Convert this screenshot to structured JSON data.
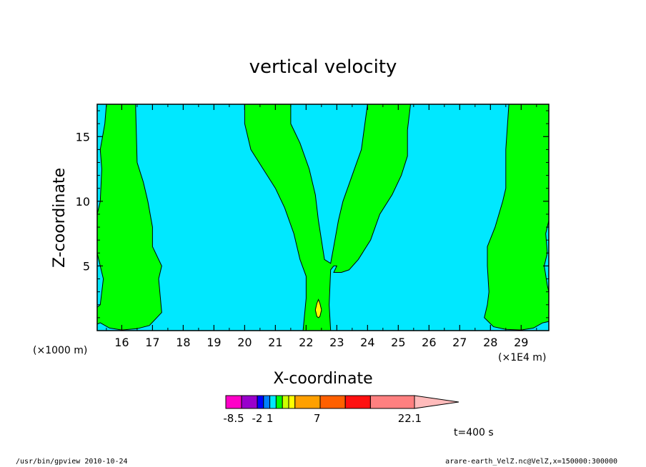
{
  "colors": {
    "background": "#00e8ff",
    "positive": "#00ff00",
    "yellow": "#ffff00",
    "outline": "#000000"
  },
  "chart_data": {
    "type": "contour",
    "title": "vertical velocity",
    "xlabel": "X-coordinate",
    "ylabel": "Z-coordinate",
    "x_unit_left": "(×1000 m)",
    "x_unit_right": "(×1E4 m)",
    "xlim": [
      15.2,
      29.9
    ],
    "ylim": [
      0,
      17.5
    ],
    "x_ticks": [
      16,
      17,
      18,
      19,
      20,
      21,
      22,
      23,
      24,
      25,
      26,
      27,
      28,
      29
    ],
    "x_tick_labels": [
      "16",
      "17",
      "18",
      "19",
      "20",
      "21",
      "22",
      "23",
      "24",
      "25",
      "26",
      "27",
      "28",
      "29"
    ],
    "y_ticks": [
      5,
      10,
      15
    ],
    "y_tick_labels": [
      "5",
      "10",
      "15"
    ],
    "regions": [
      {
        "name": "left-plume",
        "level": "positive",
        "points": [
          [
            15.2,
            17.5
          ],
          [
            15.2,
            0.5
          ],
          [
            15.3,
            0.6
          ],
          [
            15.6,
            0.2
          ],
          [
            16.0,
            0.05
          ],
          [
            16.5,
            0.15
          ],
          [
            16.9,
            0.4
          ],
          [
            17.3,
            1.4
          ],
          [
            17.2,
            4.0
          ],
          [
            17.3,
            5.0
          ],
          [
            17.0,
            6.5
          ],
          [
            17.0,
            8.0
          ],
          [
            16.85,
            10.0
          ],
          [
            16.7,
            11.5
          ],
          [
            16.5,
            13.0
          ],
          [
            16.45,
            17.5
          ]
        ]
      },
      {
        "name": "left-edge-gap",
        "level": "background",
        "points": [
          [
            15.2,
            17.5
          ],
          [
            15.5,
            17.5
          ],
          [
            15.45,
            16.0
          ],
          [
            15.3,
            14.0
          ],
          [
            15.35,
            12.5
          ],
          [
            15.3,
            10.0
          ],
          [
            15.2,
            9.0
          ]
        ]
      },
      {
        "name": "left-edge-notch",
        "level": "background",
        "points": [
          [
            15.2,
            6.0
          ],
          [
            15.25,
            5.5
          ],
          [
            15.4,
            4.0
          ],
          [
            15.3,
            2.0
          ],
          [
            15.2,
            1.8
          ]
        ]
      },
      {
        "name": "central-v",
        "level": "positive",
        "points": [
          [
            20.0,
            17.5
          ],
          [
            20.0,
            16.0
          ],
          [
            20.2,
            14.0
          ],
          [
            20.6,
            12.5
          ],
          [
            21.0,
            11.0
          ],
          [
            21.3,
            9.5
          ],
          [
            21.6,
            7.5
          ],
          [
            21.8,
            5.5
          ],
          [
            22.0,
            4.2
          ],
          [
            22.0,
            2.5
          ],
          [
            21.9,
            0.0
          ],
          [
            22.8,
            0.0
          ],
          [
            22.75,
            2.0
          ],
          [
            22.8,
            4.7
          ],
          [
            22.9,
            5.0
          ],
          [
            23.0,
            5.0
          ],
          [
            22.9,
            4.5
          ],
          [
            23.15,
            4.5
          ],
          [
            23.4,
            4.7
          ],
          [
            23.7,
            5.5
          ],
          [
            24.1,
            7.0
          ],
          [
            24.4,
            9.0
          ],
          [
            24.8,
            10.5
          ],
          [
            25.1,
            12.0
          ],
          [
            25.3,
            13.5
          ],
          [
            25.3,
            15.5
          ],
          [
            25.4,
            17.5
          ],
          [
            24.0,
            17.5
          ],
          [
            23.8,
            14.0
          ],
          [
            23.5,
            12.0
          ],
          [
            23.2,
            10.0
          ],
          [
            23.05,
            8.5
          ],
          [
            22.9,
            6.5
          ],
          [
            22.8,
            5.2
          ],
          [
            22.6,
            5.5
          ],
          [
            22.4,
            8.5
          ],
          [
            22.3,
            10.5
          ],
          [
            22.1,
            12.5
          ],
          [
            21.8,
            14.5
          ],
          [
            21.5,
            16.0
          ],
          [
            21.5,
            17.5
          ]
        ]
      },
      {
        "name": "right-plume",
        "level": "positive",
        "points": [
          [
            28.6,
            17.5
          ],
          [
            28.5,
            14.0
          ],
          [
            28.5,
            11.0
          ],
          [
            28.4,
            10.0
          ],
          [
            28.15,
            8.0
          ],
          [
            27.9,
            6.5
          ],
          [
            27.9,
            5.0
          ],
          [
            27.95,
            3.0
          ],
          [
            27.9,
            2.0
          ],
          [
            27.8,
            1.0
          ],
          [
            28.1,
            0.3
          ],
          [
            28.5,
            0.1
          ],
          [
            29.0,
            0.05
          ],
          [
            29.4,
            0.2
          ],
          [
            29.7,
            0.6
          ],
          [
            29.9,
            0.7
          ],
          [
            29.9,
            17.5
          ]
        ]
      },
      {
        "name": "right-edge-notch",
        "level": "background",
        "points": [
          [
            29.9,
            8.5
          ],
          [
            29.8,
            7.5
          ],
          [
            29.85,
            6.0
          ],
          [
            29.75,
            5.0
          ],
          [
            29.85,
            3.5
          ],
          [
            29.9,
            3.0
          ]
        ]
      },
      {
        "name": "updraft-core",
        "level": "yellow",
        "points": [
          [
            22.4,
            2.4
          ],
          [
            22.45,
            2.1
          ],
          [
            22.5,
            1.6
          ],
          [
            22.45,
            1.1
          ],
          [
            22.4,
            1.0
          ],
          [
            22.35,
            1.1
          ],
          [
            22.3,
            1.6
          ],
          [
            22.35,
            2.1
          ]
        ]
      }
    ],
    "colorbar": {
      "colors": [
        "#ff00c8",
        "#9900cc",
        "#0000ff",
        "#0080ff",
        "#00e8ff",
        "#00ff00",
        "#ccff00",
        "#ffff00",
        "#ffa000",
        "#ff6000",
        "#ff1010",
        "#ff8080",
        "#ffbbbb"
      ],
      "widths": [
        1,
        1,
        0.4,
        0.4,
        0.4,
        0.4,
        0.4,
        0.4,
        1.6,
        1.6,
        1.6,
        2.8,
        2.0
      ],
      "labels": [
        "-8.5",
        "-2",
        "1",
        "7",
        "22.1"
      ],
      "label_positions": [
        0.5,
        2.0,
        2.8,
        5.8,
        11.7
      ]
    }
  },
  "annotations": {
    "time": "t=400 s",
    "footer_left": "/usr/bin/gpview   2010-10-24",
    "footer_right": "arare-earth_VelZ.nc@VelZ,x=150000:300000"
  }
}
